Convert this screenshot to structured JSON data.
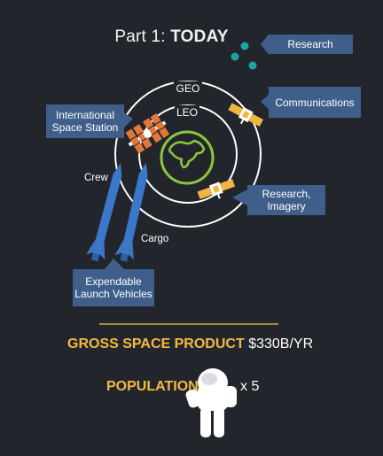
{
  "title": {
    "prefix": "Part 1: ",
    "emphasis": "TODAY"
  },
  "orbits": {
    "outer": "GEO",
    "inner": "LEO"
  },
  "callouts": {
    "iss": "International Space Station",
    "research": "Research",
    "communications": "Communications",
    "research_imagery": "Research, Imagery",
    "launch_vehicles": "Expendable Launch Vehicles"
  },
  "rocket_labels": {
    "crew": "Crew",
    "cargo": "Cargo"
  },
  "stats": {
    "gross_space_product_label": "GROSS SPACE PRODUCT",
    "gross_space_product_value": "$330B/YR",
    "population_label": "POPULATION",
    "population_multiplier": "x 5"
  },
  "colors": {
    "background": "#23252d",
    "callout_fill": "#3f5f8a",
    "accent_gold": "#f4b940",
    "research_dots": "#1aa6a0",
    "earth_outline": "#8cc63f",
    "rocket_blue": "#3b78c8",
    "satellite_gold": "#f2b53d",
    "iss_orange": "#e0783a"
  }
}
